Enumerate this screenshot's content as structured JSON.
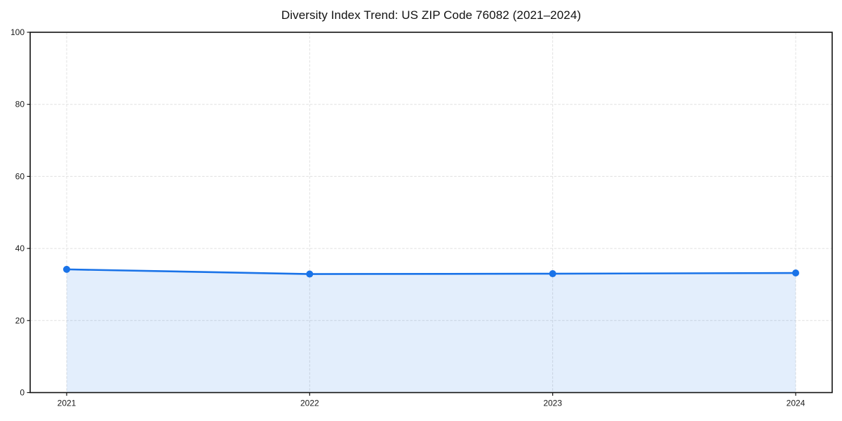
{
  "chart_data": {
    "type": "area",
    "title": "Diversity Index Trend: US ZIP Code 76082 (2021–2024)",
    "categories": [
      "2021",
      "2022",
      "2023",
      "2024"
    ],
    "series": [
      {
        "name": "Diversity Index",
        "values": [
          34.2,
          32.9,
          33.0,
          33.2
        ]
      }
    ],
    "xlabel": "",
    "ylabel": "",
    "ylim": [
      0,
      100
    ],
    "yticks": [
      0,
      20,
      40,
      60,
      80,
      100
    ],
    "grid": true,
    "grid_style": "dashed",
    "legend": false,
    "marker": "circle",
    "colors": {
      "line": "#1a73e8",
      "fill_rgba": "rgba(26,115,232,0.12)",
      "grid": "#e0e0e0",
      "axis": "#111111",
      "tick_text": "#1a1a1a",
      "background": "#ffffff"
    },
    "layout": {
      "plot_left": 43,
      "plot_top": 46,
      "plot_right": 1186,
      "plot_bottom": 559.5,
      "x_inner_pad": 52,
      "tick_len": 4.5,
      "tick_font_size": 12,
      "line_width": 2.6,
      "marker_radius": 5
    }
  }
}
